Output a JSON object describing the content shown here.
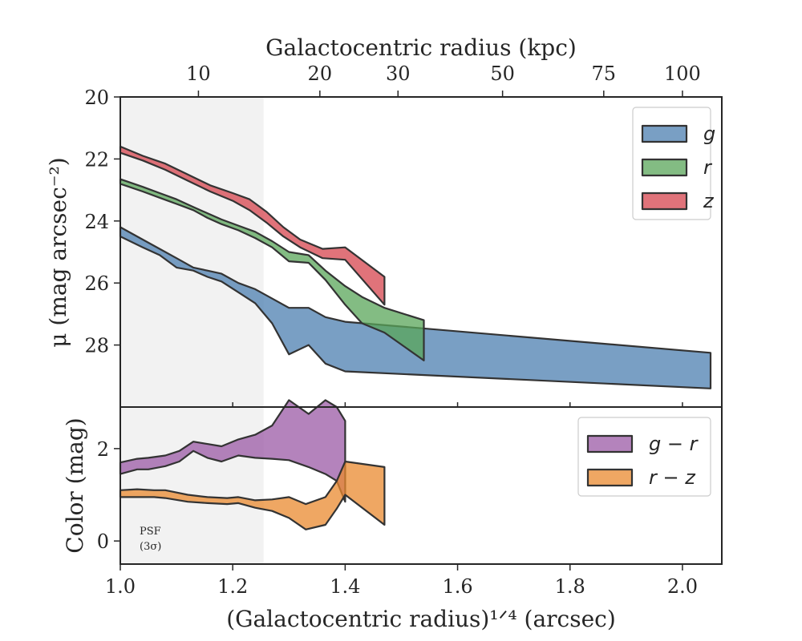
{
  "chart_data": [
    {
      "type": "area",
      "panel": "top",
      "ylabel": "μ (mag arcsec⁻²)",
      "x2label": "Galactocentric radius (kpc)",
      "xlim": [
        1.0,
        2.07
      ],
      "ylim": [
        30.0,
        20.0
      ],
      "y_inverted": true,
      "yticks": [
        20,
        22,
        24,
        26,
        28
      ],
      "x2ticks": [
        {
          "label": "10",
          "x": 1.139
        },
        {
          "label": "20",
          "x": 1.355
        },
        {
          "label": "30",
          "x": 1.494
        },
        {
          "label": "50",
          "x": 1.68
        },
        {
          "label": "75",
          "x": 1.86
        },
        {
          "label": "100",
          "x": 2.0
        }
      ],
      "legend_position": "top-right",
      "psf_region": {
        "x": [
          1.0,
          1.255
        ]
      },
      "series": [
        {
          "name": "g",
          "color": "#4c7fb0",
          "x": [
            1.0,
            1.04,
            1.07,
            1.1,
            1.13,
            1.155,
            1.18,
            1.21,
            1.24,
            1.27,
            1.3,
            1.335,
            1.365,
            1.4,
            2.05
          ],
          "y_upper": [
            24.2,
            24.6,
            24.9,
            25.2,
            25.5,
            25.6,
            25.7,
            26.0,
            26.2,
            26.5,
            26.8,
            26.8,
            27.1,
            27.25,
            28.25
          ],
          "y_lower": [
            24.5,
            24.85,
            25.1,
            25.5,
            25.6,
            25.8,
            25.95,
            26.3,
            26.65,
            27.3,
            28.3,
            28.0,
            28.6,
            28.85,
            29.4
          ]
        },
        {
          "name": "r",
          "color": "#5aa55a",
          "x": [
            1.0,
            1.04,
            1.07,
            1.1,
            1.13,
            1.155,
            1.18,
            1.21,
            1.24,
            1.27,
            1.3,
            1.335,
            1.365,
            1.4,
            1.43,
            1.47,
            1.54
          ],
          "y_upper": [
            22.65,
            22.9,
            23.1,
            23.3,
            23.55,
            23.75,
            23.95,
            24.15,
            24.35,
            24.65,
            25.0,
            25.1,
            25.6,
            26.1,
            26.45,
            26.8,
            27.2
          ],
          "y_lower": [
            22.8,
            23.05,
            23.25,
            23.45,
            23.65,
            23.9,
            24.1,
            24.3,
            24.55,
            24.85,
            25.3,
            25.35,
            25.9,
            26.7,
            27.3,
            27.6,
            28.5
          ]
        },
        {
          "name": "z",
          "color": "#d6444d",
          "x": [
            1.0,
            1.04,
            1.08,
            1.12,
            1.16,
            1.2,
            1.23,
            1.26,
            1.29,
            1.32,
            1.36,
            1.4,
            1.47
          ],
          "y_upper": [
            21.6,
            21.9,
            22.15,
            22.5,
            22.85,
            23.1,
            23.3,
            23.7,
            24.2,
            24.6,
            24.9,
            24.85,
            25.8
          ],
          "y_lower": [
            21.8,
            22.05,
            22.35,
            22.7,
            23.05,
            23.35,
            23.65,
            24.05,
            24.5,
            24.85,
            25.2,
            25.25,
            26.7
          ]
        }
      ]
    },
    {
      "type": "area",
      "panel": "bottom",
      "xlabel": "(Galactocentric radius)¹ᐟ⁴ (arcsec)",
      "ylabel": "Color (mag)",
      "xlim": [
        1.0,
        2.07
      ],
      "ylim": [
        -0.5,
        2.9
      ],
      "yticks": [
        0,
        2
      ],
      "xticks": [
        1.0,
        1.2,
        1.4,
        1.6,
        1.8,
        2.0
      ],
      "xticklabels": [
        "1.0",
        "1.2",
        "1.4",
        "1.6",
        "1.8",
        "2.0"
      ],
      "legend_position": "top-right",
      "psf_label_line1": "PSF",
      "psf_label_line2": "(3σ)",
      "series": [
        {
          "name": "g − r",
          "color": "#9b59a6",
          "x": [
            1.0,
            1.03,
            1.05,
            1.08,
            1.105,
            1.13,
            1.155,
            1.18,
            1.21,
            1.24,
            1.27,
            1.3,
            1.335,
            1.365,
            1.385,
            1.4
          ],
          "y_upper": [
            1.7,
            1.78,
            1.8,
            1.85,
            1.95,
            2.15,
            2.1,
            2.05,
            2.2,
            2.3,
            2.5,
            3.05,
            2.75,
            3.05,
            2.9,
            2.6
          ],
          "y_lower": [
            1.45,
            1.55,
            1.55,
            1.62,
            1.72,
            1.95,
            1.8,
            1.72,
            1.85,
            1.8,
            1.78,
            1.75,
            1.6,
            1.45,
            1.3,
            0.85
          ]
        },
        {
          "name": "r − z",
          "color": "#e98a2f",
          "x": [
            1.0,
            1.03,
            1.06,
            1.08,
            1.12,
            1.155,
            1.19,
            1.21,
            1.24,
            1.27,
            1.3,
            1.33,
            1.365,
            1.385,
            1.4,
            1.47
          ],
          "y_upper": [
            1.1,
            1.12,
            1.1,
            1.1,
            1.0,
            0.95,
            0.93,
            0.95,
            0.88,
            0.9,
            0.95,
            0.8,
            0.95,
            1.3,
            1.72,
            1.6
          ],
          "y_lower": [
            0.95,
            0.95,
            0.95,
            0.93,
            0.85,
            0.82,
            0.8,
            0.82,
            0.72,
            0.65,
            0.5,
            0.25,
            0.35,
            0.7,
            1.0,
            0.35
          ]
        }
      ]
    }
  ]
}
